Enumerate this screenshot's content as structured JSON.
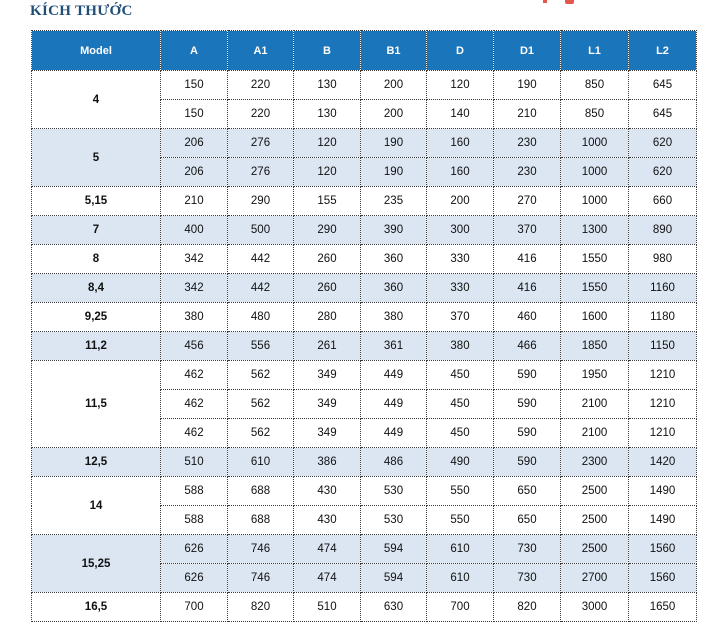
{
  "page": {
    "title": "KÍCH THƯỚC"
  },
  "colors": {
    "header_bg": "#1B75BB",
    "header_text": "#FFFFFF",
    "shaded_row_bg": "#DCE6F2",
    "title_color": "#1F4E79",
    "border": "#3A3A3A",
    "red_fragment": "#E4574D"
  },
  "table": {
    "columns": [
      "Model",
      "A",
      "A1",
      "B",
      "B1",
      "D",
      "D1",
      "L1",
      "L2"
    ],
    "groups": [
      {
        "model": "4",
        "shaded": false,
        "rows": [
          [
            150,
            220,
            130,
            200,
            120,
            190,
            850,
            645
          ],
          [
            150,
            220,
            130,
            200,
            140,
            210,
            850,
            645
          ]
        ]
      },
      {
        "model": "5",
        "shaded": true,
        "rows": [
          [
            206,
            276,
            120,
            190,
            160,
            230,
            1000,
            620
          ],
          [
            206,
            276,
            120,
            190,
            160,
            230,
            1000,
            620
          ]
        ]
      },
      {
        "model": "5,15",
        "shaded": false,
        "rows": [
          [
            210,
            290,
            155,
            235,
            200,
            270,
            1000,
            660
          ]
        ]
      },
      {
        "model": "7",
        "shaded": true,
        "rows": [
          [
            400,
            500,
            290,
            390,
            300,
            370,
            1300,
            890
          ]
        ]
      },
      {
        "model": "8",
        "shaded": false,
        "rows": [
          [
            342,
            442,
            260,
            360,
            330,
            416,
            1550,
            980
          ]
        ]
      },
      {
        "model": "8,4",
        "shaded": true,
        "rows": [
          [
            342,
            442,
            260,
            360,
            330,
            416,
            1550,
            1160
          ]
        ]
      },
      {
        "model": "9,25",
        "shaded": false,
        "rows": [
          [
            380,
            480,
            280,
            380,
            370,
            460,
            1600,
            1180
          ]
        ]
      },
      {
        "model": "11,2",
        "shaded": true,
        "rows": [
          [
            456,
            556,
            261,
            361,
            380,
            466,
            1850,
            1150
          ]
        ]
      },
      {
        "model": "11,5",
        "shaded": false,
        "rows": [
          [
            462,
            562,
            349,
            449,
            450,
            590,
            1950,
            1210
          ],
          [
            462,
            562,
            349,
            449,
            450,
            590,
            2100,
            1210
          ],
          [
            462,
            562,
            349,
            449,
            450,
            590,
            2100,
            1210
          ]
        ]
      },
      {
        "model": "12,5",
        "shaded": true,
        "rows": [
          [
            510,
            610,
            386,
            486,
            490,
            590,
            2300,
            1420
          ]
        ]
      },
      {
        "model": "14",
        "shaded": false,
        "rows": [
          [
            588,
            688,
            430,
            530,
            550,
            650,
            2500,
            1490
          ],
          [
            588,
            688,
            430,
            530,
            550,
            650,
            2500,
            1490
          ]
        ]
      },
      {
        "model": "15,25",
        "shaded": true,
        "rows": [
          [
            626,
            746,
            474,
            594,
            610,
            730,
            2500,
            1560
          ],
          [
            626,
            746,
            474,
            594,
            610,
            730,
            2700,
            1560
          ]
        ]
      },
      {
        "model": "16,5",
        "shaded": false,
        "rows": [
          [
            700,
            820,
            510,
            630,
            700,
            820,
            3000,
            1650
          ]
        ]
      }
    ]
  }
}
